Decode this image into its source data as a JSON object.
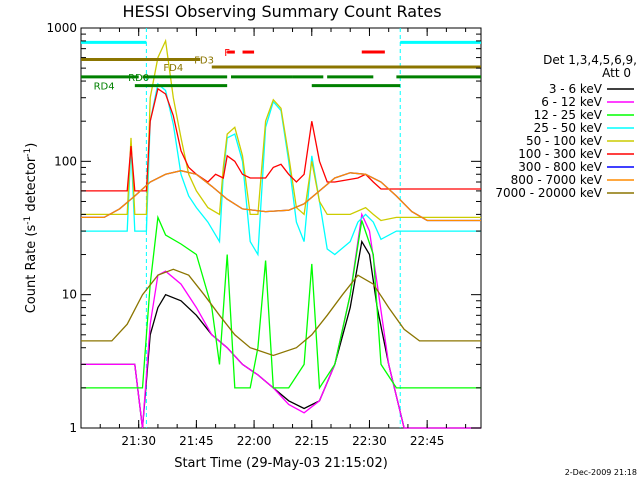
{
  "chart_data": {
    "type": "line",
    "title": "HESSI Observing Summary Count Rates",
    "xlabel": "Start Time (29-May-03 21:15:02)",
    "ylabel_main": "Count Rate (s",
    "ylabel_sup1": "-1",
    "ylabel_mid": " detector",
    "ylabel_sup2": "-1",
    "ylabel_end": ")",
    "yscale": "log",
    "ylim": [
      1,
      1000
    ],
    "xlim_minutes": [
      0,
      104
    ],
    "x_ticks": [
      {
        "label": "21:30",
        "t": 15
      },
      {
        "label": "21:45",
        "t": 30
      },
      {
        "label": "22:00",
        "t": 45
      },
      {
        "label": "22:15",
        "t": 60
      },
      {
        "label": "22:30",
        "t": 75
      },
      {
        "label": "22:45",
        "t": 90
      }
    ],
    "y_ticks": [
      {
        "label": "1",
        "v": 1
      },
      {
        "label": "10",
        "v": 10
      },
      {
        "label": "100",
        "v": 100
      },
      {
        "label": "1000",
        "v": 1000
      }
    ],
    "legend_title": "Det 1,3,4,5,6,9,",
    "legend_att": "Att 0",
    "footer": "2-Dec-2009 21:18",
    "series": [
      {
        "name": "3 - 6 keV",
        "color": "#000000",
        "points": [
          [
            0,
            3
          ],
          [
            14,
            3
          ],
          [
            16,
            1
          ],
          [
            18,
            5
          ],
          [
            20,
            8
          ],
          [
            22,
            10
          ],
          [
            26,
            9
          ],
          [
            30,
            7
          ],
          [
            34,
            5
          ],
          [
            38,
            4
          ],
          [
            42,
            3
          ],
          [
            46,
            2.5
          ],
          [
            50,
            2
          ],
          [
            54,
            1.6
          ],
          [
            58,
            1.4
          ],
          [
            62,
            1.6
          ],
          [
            66,
            3
          ],
          [
            70,
            8
          ],
          [
            73,
            25
          ],
          [
            75,
            20
          ],
          [
            77,
            8
          ],
          [
            80,
            3
          ],
          [
            84,
            1
          ],
          [
            104,
            1
          ]
        ]
      },
      {
        "name": "6 - 12 keV",
        "color": "#ff00ff",
        "points": [
          [
            0,
            3
          ],
          [
            14,
            3
          ],
          [
            16,
            1
          ],
          [
            18,
            6
          ],
          [
            20,
            14
          ],
          [
            22,
            15
          ],
          [
            26,
            12
          ],
          [
            30,
            8
          ],
          [
            34,
            5
          ],
          [
            38,
            4
          ],
          [
            42,
            3
          ],
          [
            46,
            2.5
          ],
          [
            50,
            2
          ],
          [
            54,
            1.5
          ],
          [
            58,
            1.3
          ],
          [
            62,
            1.6
          ],
          [
            66,
            3
          ],
          [
            70,
            10
          ],
          [
            73,
            40
          ],
          [
            75,
            30
          ],
          [
            77,
            12
          ],
          [
            80,
            3
          ],
          [
            84,
            1
          ],
          [
            104,
            1
          ]
        ]
      },
      {
        "name": "12 - 25 keV",
        "color": "#00ff00",
        "points": [
          [
            0,
            2
          ],
          [
            14,
            2
          ],
          [
            16,
            2
          ],
          [
            18,
            12
          ],
          [
            20,
            38
          ],
          [
            22,
            28
          ],
          [
            26,
            24
          ],
          [
            30,
            20
          ],
          [
            34,
            8
          ],
          [
            36,
            3
          ],
          [
            38,
            20
          ],
          [
            40,
            2
          ],
          [
            44,
            2
          ],
          [
            46,
            4
          ],
          [
            48,
            18
          ],
          [
            50,
            2
          ],
          [
            54,
            2
          ],
          [
            58,
            3
          ],
          [
            60,
            17
          ],
          [
            62,
            2
          ],
          [
            66,
            3
          ],
          [
            70,
            10
          ],
          [
            73,
            36
          ],
          [
            76,
            20
          ],
          [
            78,
            3
          ],
          [
            82,
            2
          ],
          [
            104,
            2
          ]
        ]
      },
      {
        "name": "25 - 50 keV",
        "color": "#00ffff",
        "points": [
          [
            0,
            30
          ],
          [
            12,
            30
          ],
          [
            13,
            130
          ],
          [
            14,
            30
          ],
          [
            17,
            30
          ],
          [
            18,
            200
          ],
          [
            20,
            380
          ],
          [
            22,
            340
          ],
          [
            24,
            190
          ],
          [
            26,
            80
          ],
          [
            28,
            55
          ],
          [
            30,
            45
          ],
          [
            33,
            35
          ],
          [
            36,
            25
          ],
          [
            37,
            80
          ],
          [
            38,
            150
          ],
          [
            40,
            160
          ],
          [
            42,
            100
          ],
          [
            44,
            25
          ],
          [
            46,
            20
          ],
          [
            48,
            180
          ],
          [
            50,
            280
          ],
          [
            52,
            240
          ],
          [
            54,
            100
          ],
          [
            56,
            35
          ],
          [
            58,
            25
          ],
          [
            60,
            110
          ],
          [
            62,
            50
          ],
          [
            64,
            22
          ],
          [
            66,
            20
          ],
          [
            70,
            25
          ],
          [
            72,
            35
          ],
          [
            74,
            40
          ],
          [
            76,
            35
          ],
          [
            78,
            26
          ],
          [
            82,
            30
          ],
          [
            104,
            30
          ]
        ]
      },
      {
        "name": "50 - 100 keV",
        "color": "#cccc00",
        "points": [
          [
            0,
            40
          ],
          [
            12,
            40
          ],
          [
            13,
            150
          ],
          [
            14,
            40
          ],
          [
            17,
            40
          ],
          [
            18,
            300
          ],
          [
            20,
            600
          ],
          [
            22,
            800
          ],
          [
            24,
            300
          ],
          [
            26,
            150
          ],
          [
            28,
            80
          ],
          [
            30,
            60
          ],
          [
            33,
            45
          ],
          [
            36,
            40
          ],
          [
            37,
            90
          ],
          [
            38,
            160
          ],
          [
            40,
            180
          ],
          [
            42,
            110
          ],
          [
            44,
            40
          ],
          [
            46,
            40
          ],
          [
            48,
            200
          ],
          [
            50,
            290
          ],
          [
            52,
            250
          ],
          [
            54,
            110
          ],
          [
            56,
            45
          ],
          [
            58,
            40
          ],
          [
            60,
            100
          ],
          [
            62,
            50
          ],
          [
            64,
            40
          ],
          [
            70,
            40
          ],
          [
            74,
            45
          ],
          [
            76,
            40
          ],
          [
            78,
            36
          ],
          [
            82,
            38
          ],
          [
            104,
            38
          ]
        ]
      },
      {
        "name": "100 - 300 keV",
        "color": "#ff0000",
        "points": [
          [
            0,
            60
          ],
          [
            12,
            60
          ],
          [
            13,
            130
          ],
          [
            14,
            60
          ],
          [
            17,
            60
          ],
          [
            18,
            200
          ],
          [
            20,
            350
          ],
          [
            22,
            320
          ],
          [
            24,
            220
          ],
          [
            26,
            120
          ],
          [
            28,
            90
          ],
          [
            30,
            80
          ],
          [
            33,
            70
          ],
          [
            35,
            80
          ],
          [
            37,
            75
          ],
          [
            38,
            110
          ],
          [
            40,
            100
          ],
          [
            42,
            80
          ],
          [
            44,
            75
          ],
          [
            48,
            75
          ],
          [
            50,
            90
          ],
          [
            52,
            95
          ],
          [
            54,
            80
          ],
          [
            56,
            70
          ],
          [
            58,
            80
          ],
          [
            60,
            200
          ],
          [
            62,
            100
          ],
          [
            64,
            70
          ],
          [
            66,
            70
          ],
          [
            72,
            75
          ],
          [
            74,
            80
          ],
          [
            76,
            70
          ],
          [
            78,
            62
          ],
          [
            82,
            62
          ],
          [
            104,
            62
          ]
        ]
      },
      {
        "name": "300 - 800 keV",
        "color": "#0000ff",
        "points": [
          [
            0,
            38
          ],
          [
            6,
            38
          ],
          [
            10,
            44
          ],
          [
            14,
            55
          ],
          [
            18,
            70
          ],
          [
            22,
            80
          ],
          [
            26,
            85
          ],
          [
            30,
            80
          ],
          [
            34,
            65
          ],
          [
            38,
            52
          ],
          [
            42,
            44
          ],
          [
            48,
            42
          ],
          [
            54,
            43
          ],
          [
            58,
            48
          ],
          [
            62,
            60
          ],
          [
            66,
            75
          ],
          [
            70,
            82
          ],
          [
            74,
            80
          ],
          [
            78,
            70
          ],
          [
            82,
            55
          ],
          [
            86,
            42
          ],
          [
            90,
            36
          ],
          [
            96,
            36
          ],
          [
            104,
            36
          ]
        ]
      },
      {
        "name": "800 - 7000 keV",
        "color": "#ff8c00",
        "points": [
          [
            0,
            38
          ],
          [
            6,
            38
          ],
          [
            10,
            44
          ],
          [
            14,
            55
          ],
          [
            18,
            70
          ],
          [
            22,
            80
          ],
          [
            26,
            85
          ],
          [
            30,
            80
          ],
          [
            34,
            65
          ],
          [
            38,
            52
          ],
          [
            42,
            44
          ],
          [
            48,
            42
          ],
          [
            54,
            43
          ],
          [
            58,
            48
          ],
          [
            62,
            60
          ],
          [
            66,
            75
          ],
          [
            70,
            82
          ],
          [
            74,
            80
          ],
          [
            78,
            70
          ],
          [
            82,
            55
          ],
          [
            86,
            42
          ],
          [
            90,
            36
          ],
          [
            96,
            36
          ],
          [
            104,
            36
          ]
        ]
      },
      {
        "name": "7000 - 20000 keV",
        "color": "#8b7500",
        "points": [
          [
            0,
            4.5
          ],
          [
            8,
            4.5
          ],
          [
            12,
            6
          ],
          [
            16,
            10
          ],
          [
            20,
            14
          ],
          [
            24,
            15.5
          ],
          [
            28,
            14
          ],
          [
            32,
            10
          ],
          [
            36,
            7
          ],
          [
            40,
            5
          ],
          [
            44,
            4
          ],
          [
            50,
            3.5
          ],
          [
            56,
            4
          ],
          [
            60,
            5
          ],
          [
            64,
            7
          ],
          [
            68,
            10
          ],
          [
            72,
            14
          ],
          [
            76,
            12
          ],
          [
            80,
            8
          ],
          [
            84,
            5.5
          ],
          [
            88,
            4.5
          ],
          [
            96,
            4.5
          ],
          [
            104,
            4.5
          ]
        ]
      }
    ],
    "flag_bars": [
      {
        "label": "",
        "color": "#00ffff",
        "v": 780,
        "segs": [
          [
            0,
            17
          ],
          [
            83,
            104
          ]
        ]
      },
      {
        "label": "F",
        "color": "#ff0000",
        "v": 660,
        "segs": [
          [
            38,
            40
          ],
          [
            42,
            45
          ],
          [
            73,
            79
          ]
        ]
      },
      {
        "label": "FD3",
        "color": "#8b7500",
        "v": 580,
        "segs": [
          [
            0,
            31
          ]
        ]
      },
      {
        "label": "FD4",
        "color": "#8b7500",
        "v": 510,
        "segs": [
          [
            34,
            104
          ]
        ]
      },
      {
        "label": "RD0",
        "color": "#008000",
        "v": 430,
        "segs": [
          [
            0,
            15
          ],
          [
            16,
            38
          ],
          [
            39,
            55
          ],
          [
            55,
            63
          ],
          [
            64,
            76
          ],
          [
            82,
            104
          ]
        ]
      },
      {
        "label": "RD4",
        "color": "#008000",
        "v": 370,
        "segs": [
          [
            14,
            38
          ],
          [
            60,
            83
          ]
        ]
      }
    ],
    "flag_label_pos": {
      "F": [
        38,
        660
      ],
      "FD3": [
        32,
        580
      ],
      "FD4": [
        24,
        510
      ],
      "RD0": [
        15,
        430
      ],
      "RD4": [
        6,
        370
      ]
    },
    "vlines_minutes": [
      17,
      83
    ]
  }
}
